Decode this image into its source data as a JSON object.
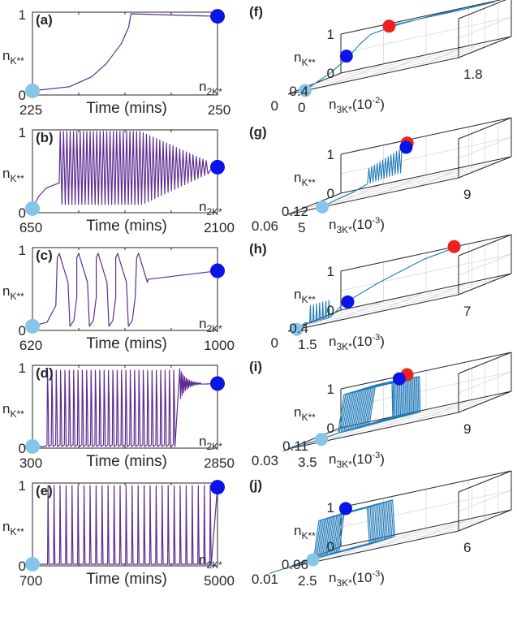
{
  "colors": {
    "trace": "#5e2d91",
    "traj3d": "#1f7ab8",
    "start_marker": "#87c5e8",
    "end_marker": "#0a14e6",
    "red_marker": "#ee2020",
    "axis": "#262626"
  },
  "chart_data": [
    {
      "type": "line",
      "panel_label": "(a)",
      "xlabel": "Time (mins)",
      "ylabel": "n",
      "ylabel_sub": "K**",
      "xlim": [
        225,
        250
      ],
      "ylim": [
        0,
        1
      ],
      "x_tick_labels": [
        "225",
        "250"
      ],
      "y_tick_labels": [
        "0",
        "1"
      ],
      "dynamics": "sigmoidal rise then plateau",
      "x": [
        225,
        230,
        233,
        235,
        237,
        238,
        238.3,
        250
      ],
      "y": [
        0.05,
        0.1,
        0.22,
        0.38,
        0.62,
        0.82,
        0.98,
        0.95
      ],
      "start_marker": {
        "x": 225,
        "y": 0.05
      },
      "end_marker": {
        "x": 250,
        "y": 0.95
      }
    },
    {
      "type": "line",
      "panel_label": "(b)",
      "xlabel": "Time (mins)",
      "ylabel": "n",
      "ylabel_sub": "K**",
      "xlim": [
        650,
        2100
      ],
      "ylim": [
        0,
        1
      ],
      "x_tick_labels": [
        "650",
        "2100"
      ],
      "y_tick_labels": [
        "0",
        "1"
      ],
      "dynamics": "rise, then dense oscillations (~45 cycles) slowly damping toward 0.55",
      "oscillation_cycles": 45,
      "oscillation_start": 860,
      "oscillation_envelope_high": 0.98,
      "oscillation_envelope_low": 0.1,
      "settle_value": 0.55,
      "pre_oscillation": {
        "x": [
          650,
          700,
          760,
          860
        ],
        "y": [
          0.05,
          0.2,
          0.3,
          0.36
        ]
      },
      "start_marker": {
        "x": 650,
        "y": 0.05
      },
      "end_marker": {
        "x": 2100,
        "y": 0.55
      }
    },
    {
      "type": "line",
      "panel_label": "(c)",
      "xlabel": "Time (mins)",
      "ylabel": "n",
      "ylabel_sub": "K**",
      "xlim": [
        620,
        1000
      ],
      "ylim": [
        0,
        1
      ],
      "x_tick_labels": [
        "620",
        "1000"
      ],
      "y_tick_labels": [
        "0",
        "1"
      ],
      "dynamics": "five relaxation spikes, then slow linear rise",
      "spike_times": [
        675,
        715,
        755,
        795,
        838
      ],
      "spike_peak": 0.93,
      "spike_trough": 0.05,
      "post_spikes": {
        "x": [
          860,
          1000
        ],
        "y": [
          0.62,
          0.72
        ]
      },
      "start_marker": {
        "x": 620,
        "y": 0.05
      },
      "end_marker": {
        "x": 1000,
        "y": 0.72
      }
    },
    {
      "type": "line",
      "panel_label": "(d)",
      "xlabel": "Time (mins)",
      "ylabel": "n",
      "ylabel_sub": "K**",
      "xlim": [
        300,
        2850
      ],
      "ylim": [
        0,
        1
      ],
      "x_tick_labels": [
        "300",
        "2850"
      ],
      "y_tick_labels": [
        "0",
        "1"
      ],
      "dynamics": "~30 sharp spikes, then damped oscillation settling near 0.78",
      "spike_count": 30,
      "spike_start": 500,
      "spike_end": 2300,
      "spike_peak": 0.94,
      "spike_trough": 0.02,
      "settle_value": 0.78,
      "start_marker": {
        "x": 300,
        "y": 0.02
      },
      "end_marker": {
        "x": 2850,
        "y": 0.78
      }
    },
    {
      "type": "line",
      "panel_label": "(e)",
      "xlabel": "Time (mins)",
      "ylabel": "n",
      "ylabel_sub": "K**",
      "xlim": [
        700,
        5000
      ],
      "ylim": [
        0,
        1
      ],
      "x_tick_labels": [
        "700",
        "5000"
      ],
      "y_tick_labels": [
        "0",
        "1"
      ],
      "dynamics": "sustained sharp spikes (~28) until end",
      "spike_count": 28,
      "spike_start": 1050,
      "spike_peak": 0.97,
      "spike_trough": 0.02,
      "start_marker": {
        "x": 700,
        "y": 0.02
      },
      "end_marker": {
        "x": 5000,
        "y": 0.95
      }
    },
    {
      "type": "scatter",
      "panel_label": "(f)",
      "plot_kind": "3d phase trajectory",
      "zlabel": "n",
      "zlabel_sub": "K**",
      "ylabel": "n",
      "ylabel_sub": "2K*",
      "xlabel": "n",
      "xlabel_sub": "3K*",
      "xlabel_suffix": "(10",
      "x_exponent": "-2",
      "xlabel_close": ")",
      "x_tick_labels": [
        "0",
        "1.8"
      ],
      "y_tick_labels": [
        "0",
        "0.4"
      ],
      "z_tick_labels": [
        "0",
        "1"
      ],
      "shape": "sigmoid rise to red fixed point with overshoot loop",
      "markers": [
        "start",
        "end",
        "red"
      ]
    },
    {
      "type": "scatter",
      "panel_label": "(g)",
      "plot_kind": "3d phase trajectory",
      "zlabel": "n",
      "zlabel_sub": "K**",
      "ylabel": "n",
      "ylabel_sub": "2K*",
      "xlabel": "n",
      "xlabel_sub": "3K*",
      "xlabel_suffix": "(10",
      "x_exponent": "-3",
      "xlabel_close": ")",
      "x_tick_labels": [
        "5",
        "9"
      ],
      "y_tick_labels": [
        "0.06",
        "0.12"
      ],
      "z_tick_labels": [
        "0",
        "1"
      ],
      "shape": "dense limit-cycle band spiralling to red fixed point",
      "markers": [
        "start",
        "end",
        "red"
      ]
    },
    {
      "type": "scatter",
      "panel_label": "(h)",
      "plot_kind": "3d phase trajectory",
      "zlabel": "n",
      "zlabel_sub": "K**",
      "ylabel": "n",
      "ylabel_sub": "2K*",
      "xlabel": "n",
      "xlabel_sub": "3K*",
      "xlabel_suffix": "(10",
      "x_exponent": "-3",
      "xlabel_close": ")",
      "x_tick_labels": [
        "1.5",
        "7"
      ],
      "y_tick_labels": [
        "0",
        "0.4"
      ],
      "z_tick_labels": [
        "0",
        "1"
      ],
      "shape": "few vertical loops then path to red fixed point",
      "markers": [
        "start",
        "end",
        "red"
      ]
    },
    {
      "type": "scatter",
      "panel_label": "(i)",
      "plot_kind": "3d phase trajectory",
      "zlabel": "n",
      "zlabel_sub": "K**",
      "ylabel": "n",
      "ylabel_sub": "2K*",
      "xlabel": "n",
      "xlabel_sub": "3K*",
      "xlabel_suffix": "(10",
      "x_exponent": "-3",
      "xlabel_close": ")",
      "x_tick_labels": [
        "3.5",
        "9"
      ],
      "y_tick_labels": [
        "0.03",
        "0.11"
      ],
      "z_tick_labels": [
        "0",
        "1"
      ],
      "shape": "many nested relaxation loops converging to fixed point",
      "markers": [
        "start",
        "end",
        "red"
      ]
    },
    {
      "type": "scatter",
      "panel_label": "(j)",
      "plot_kind": "3d phase trajectory",
      "zlabel": "n",
      "zlabel_sub": "K**",
      "ylabel": "n",
      "ylabel_sub": "2K*",
      "xlabel": "n",
      "xlabel_sub": "3K*",
      "xlabel_suffix": "(10",
      "x_exponent": "-3",
      "xlabel_close": ")",
      "x_tick_labels": [
        "2.5",
        "6"
      ],
      "y_tick_labels": [
        "0.01",
        "0.06"
      ],
      "z_tick_labels": [
        "0",
        "1"
      ],
      "shape": "sustained large relaxation loops (limit cycle)",
      "markers": [
        "start",
        "end"
      ]
    }
  ]
}
